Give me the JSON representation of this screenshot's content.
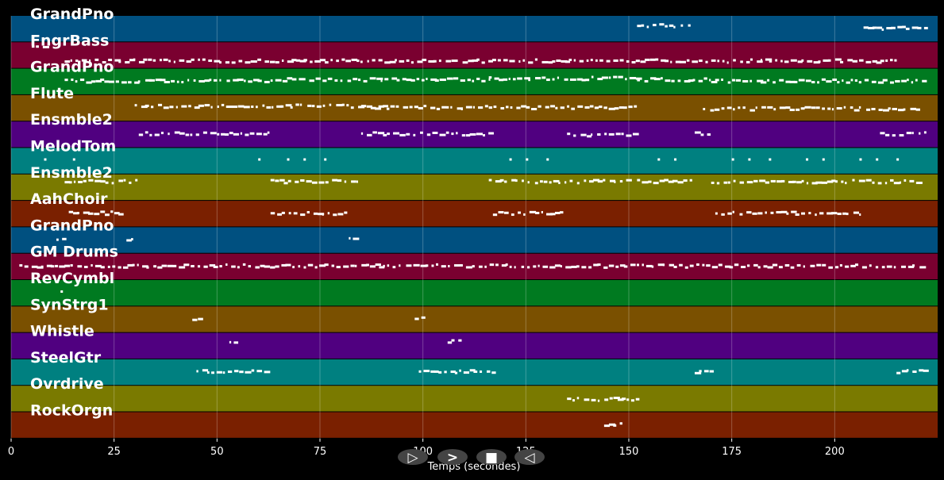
{
  "chart_data": {
    "type": "piano-roll",
    "xlabel": "Temps (secondes)",
    "xlim": [
      0,
      225
    ],
    "xticks": [
      0,
      25,
      50,
      75,
      100,
      125,
      150,
      175,
      200
    ],
    "grid": true,
    "tracks": [
      {
        "label": "GrandPno",
        "color": "#005080",
        "segments": [
          [
            152,
            165,
            0.4
          ],
          [
            175,
            170,
            0.55
          ],
          [
            207,
            222,
            0.5
          ]
        ]
      },
      {
        "label": "FngrBass",
        "color": "#7a0030",
        "segments": [
          [
            5,
            9,
            0.15
          ],
          [
            13,
            215,
            0.75
          ]
        ]
      },
      {
        "label": "GrandPno",
        "color": "#007a20",
        "segments": [
          [
            13,
            63,
            0.5
          ],
          [
            63,
            116,
            0.45
          ],
          [
            116,
            152,
            0.4
          ],
          [
            152,
            170,
            0.45
          ],
          [
            170,
            222,
            0.5
          ]
        ]
      },
      {
        "label": "Flute",
        "color": "#7a5000",
        "segments": [
          [
            30,
            85,
            0.45
          ],
          [
            85,
            116,
            0.5
          ],
          [
            116,
            152,
            0.5
          ],
          [
            168,
            220,
            0.55
          ]
        ]
      },
      {
        "label": "Ensmble2",
        "color": "#500080",
        "segments": [
          [
            31,
            63,
            0.5
          ],
          [
            85,
            116,
            0.5
          ],
          [
            135,
            152,
            0.55
          ],
          [
            166,
            170,
            0.5
          ],
          [
            211,
            222,
            0.5
          ]
        ]
      },
      {
        "label": "MelodTom",
        "color": "#008080",
        "segments": []
      },
      {
        "label": "Ensmble2",
        "color": "#7a7a00",
        "segments": [
          [
            13,
            31,
            0.3
          ],
          [
            63,
            85,
            0.3
          ],
          [
            116,
            150,
            0.3
          ],
          [
            152,
            165,
            0.3
          ],
          [
            170,
            220,
            0.3
          ]
        ]
      },
      {
        "label": "AahChoir",
        "color": "#7a2000",
        "segments": [
          [
            14,
            27,
            0.5
          ],
          [
            63,
            81,
            0.5
          ],
          [
            117,
            134,
            0.5
          ],
          [
            171,
            206,
            0.5
          ]
        ]
      },
      {
        "label": "GrandPno",
        "color": "#005080",
        "segments": [
          [
            11,
            13,
            0.45
          ],
          [
            28,
            30,
            0.5
          ],
          [
            82,
            84,
            0.5
          ]
        ]
      },
      {
        "label": "GM Drums",
        "color": "#7a0030",
        "segments": [
          [
            2,
            222,
            0.5
          ]
        ]
      },
      {
        "label": "RevCymbl",
        "color": "#007a20",
        "segments": []
      },
      {
        "label": "SynStrg1",
        "color": "#7a5000",
        "segments": [
          [
            44,
            46,
            0.5
          ],
          [
            98,
            100,
            0.5
          ]
        ]
      },
      {
        "label": "Whistle",
        "color": "#500080",
        "segments": [
          [
            53,
            55,
            0.35
          ],
          [
            106,
            109,
            0.35
          ]
        ]
      },
      {
        "label": "SteelGtr",
        "color": "#008080",
        "segments": [
          [
            45,
            63,
            0.5
          ],
          [
            99,
            117,
            0.5
          ],
          [
            166,
            170,
            0.5
          ],
          [
            215,
            222,
            0.5
          ]
        ]
      },
      {
        "label": "Ovrdrive",
        "color": "#7a7a00",
        "segments": [
          [
            135,
            152,
            0.55
          ]
        ]
      },
      {
        "label": "RockOrgn",
        "color": "#7a2000",
        "segments": [
          [
            144,
            148,
            0.5
          ]
        ]
      }
    ],
    "drum_hits": [
      {
        "track": 5,
        "times": [
          8,
          15,
          60,
          67,
          71,
          76,
          121,
          125,
          130,
          157,
          161,
          175,
          179,
          184,
          193,
          197,
          206,
          210,
          215
        ]
      },
      {
        "track": 10,
        "times": [
          12
        ]
      }
    ]
  },
  "controls": [
    {
      "name": "play-button",
      "glyph": "▷"
    },
    {
      "name": "forward-button",
      "glyph": ">"
    },
    {
      "name": "stop-button",
      "glyph": "■"
    },
    {
      "name": "back-button",
      "glyph": "◁"
    }
  ],
  "colors": {
    "background": "#000000",
    "note": "#ffffff",
    "control": "#444444"
  }
}
